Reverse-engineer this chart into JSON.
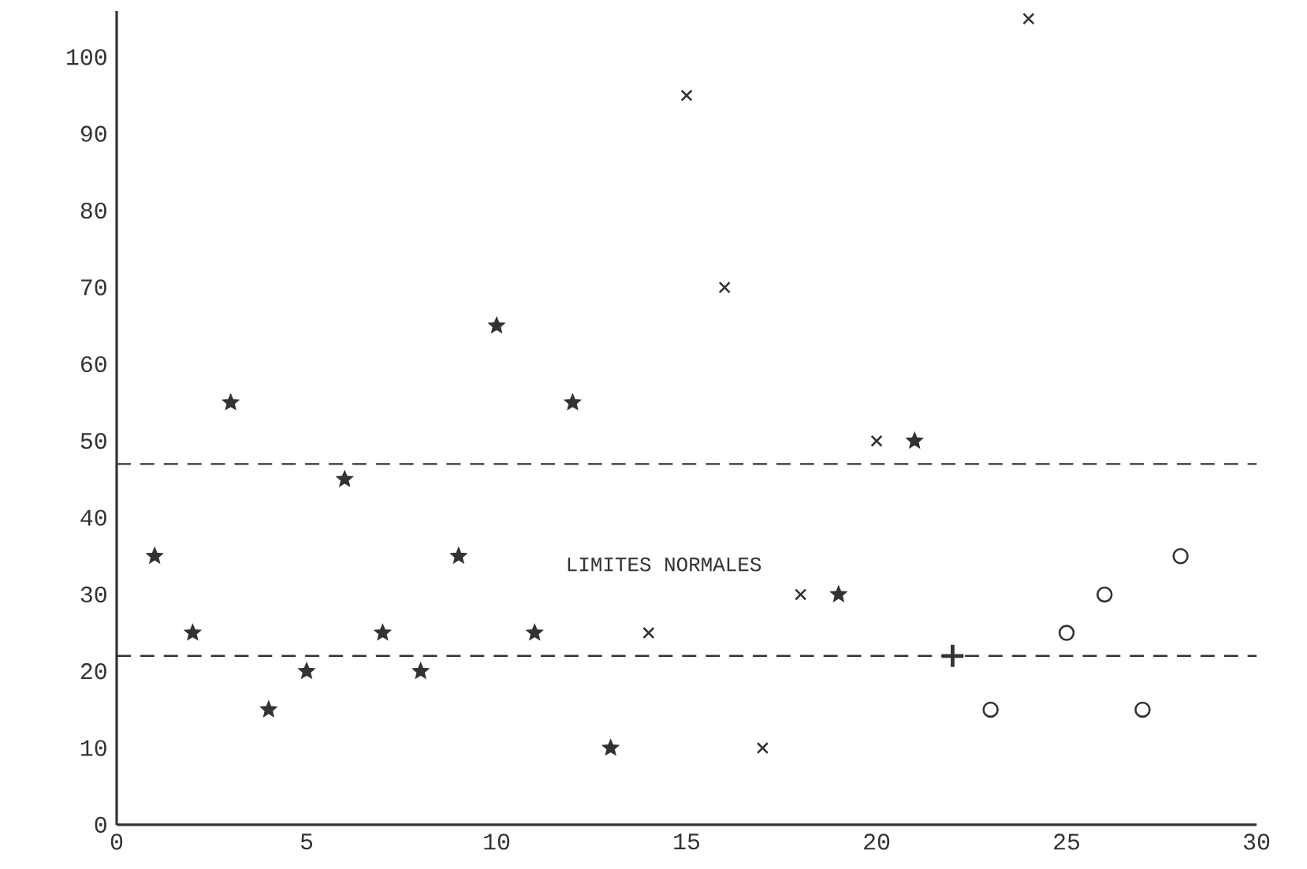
{
  "chart_data": {
    "type": "scatter",
    "xlim": [
      0,
      30
    ],
    "ylim": [
      0,
      106
    ],
    "xticks": [
      0,
      5,
      10,
      15,
      20,
      25,
      30
    ],
    "yticks": [
      0,
      10,
      20,
      30,
      40,
      50,
      60,
      70,
      80,
      90,
      100
    ],
    "grid": false,
    "series": [
      {
        "color": "#333333",
        "marker": "star",
        "x": [
          1,
          2,
          3,
          4,
          5,
          6,
          7,
          8,
          9,
          10,
          11,
          12,
          13,
          19,
          21
        ],
        "values": [
          35,
          25,
          55,
          15,
          20,
          45,
          25,
          20,
          35,
          65,
          25,
          55,
          10,
          30,
          50
        ]
      },
      {
        "color": "#333333",
        "marker": "cross",
        "x": [
          14,
          15,
          16,
          17,
          18,
          20,
          24
        ],
        "values": [
          25,
          95,
          70,
          10,
          30,
          50,
          105
        ]
      },
      {
        "color": "#333333",
        "marker": "plus",
        "x": [
          22
        ],
        "values": [
          22
        ]
      },
      {
        "color": "#333333",
        "marker": "circle",
        "x": [
          23,
          25,
          26,
          27,
          28
        ],
        "values": [
          15,
          25,
          30,
          15,
          35
        ]
      }
    ],
    "ref_lines": [
      {
        "axis": "y",
        "value": 47,
        "line_style": "dashed",
        "color": "#333333"
      },
      {
        "axis": "y",
        "value": 22,
        "line_style": "dashed",
        "color": "#333333"
      }
    ],
    "annotations": [
      "LIMITES NORMALES"
    ]
  }
}
